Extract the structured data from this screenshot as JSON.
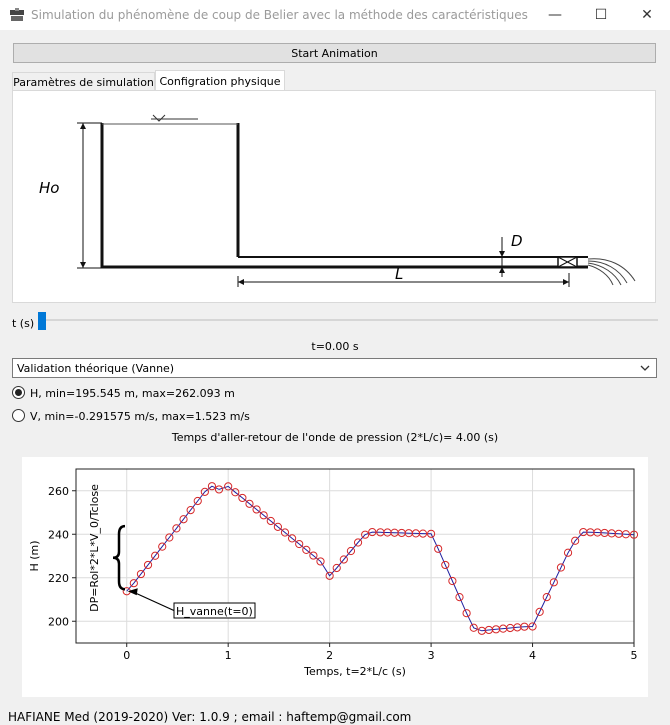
{
  "window": {
    "title": "Simulation du phénomène de coup de Belier avec la méthode des caractéristiques",
    "minimize_glyph": "—",
    "maximize_glyph": "☐",
    "close_glyph": "✕"
  },
  "toolbar": {
    "start_label": "Start Animation"
  },
  "tabs": [
    {
      "label": "Paramètres de simulation",
      "active": false
    },
    {
      "label": "Configration physique",
      "active": true
    }
  ],
  "diagram": {
    "h0_label": "Ho",
    "d_label": "D",
    "l_label": "L"
  },
  "time_slider": {
    "label": "t (s)",
    "value": 0,
    "value_text": "t=0.00 s"
  },
  "mode_select": {
    "selected": "Validation théorique (Vanne)"
  },
  "radios": [
    {
      "label": "H, min=195.545 m, max=262.093 m",
      "checked": true
    },
    {
      "label": "V, min=-0.291575 m/s, max=1.523 m/s",
      "checked": false
    }
  ],
  "roundtrip_text": "Temps d'aller-retour de l'onde de pression (2*L/c)= 4.00 (s)",
  "chart_data": {
    "type": "line",
    "xlabel": "Temps, t=2*L/c (s)",
    "ylabel": "H (m)",
    "xlim": [
      -0.5,
      5.0
    ],
    "ylim": [
      190,
      270
    ],
    "xticks": [
      0,
      1,
      2,
      3,
      4,
      5
    ],
    "yticks": [
      200,
      220,
      240,
      260
    ],
    "grid": true,
    "line_color": "#2020a0",
    "marker_color": "#d62728",
    "annotations": [
      {
        "text": "H_vanne(t=0)",
        "x": 0,
        "y": 213.8
      },
      {
        "text": "DP=Rol*2*L*V_0/Tclose",
        "x": -0.12,
        "y": 237
      }
    ],
    "series": [
      {
        "x": [
          0.0,
          0.07,
          0.14,
          0.21,
          0.28,
          0.35,
          0.42,
          0.49,
          0.56,
          0.63,
          0.7,
          0.77,
          0.84,
          0.91,
          1.0,
          1.07,
          1.14,
          1.21,
          1.28,
          1.35,
          1.42,
          1.49,
          1.56,
          1.63,
          1.7,
          1.77,
          1.84,
          1.91,
          2.0,
          2.07,
          2.14,
          2.21,
          2.28,
          2.35,
          2.42,
          2.5,
          2.57,
          2.64,
          2.71,
          2.78,
          2.85,
          2.92,
          3.0,
          3.07,
          3.14,
          3.21,
          3.28,
          3.35,
          3.42,
          3.5,
          3.57,
          3.64,
          3.71,
          3.78,
          3.85,
          3.92,
          4.0,
          4.07,
          4.14,
          4.21,
          4.28,
          4.35,
          4.42,
          4.5,
          4.57,
          4.64,
          4.71,
          4.78,
          4.85,
          4.92,
          5.0
        ],
        "y": [
          213.8,
          217.5,
          221.7,
          225.9,
          230.1,
          234.3,
          238.5,
          242.7,
          246.9,
          251.1,
          255.3,
          259.5,
          262.1,
          260.6,
          262.0,
          259.3,
          256.7,
          254.0,
          251.4,
          248.7,
          246.1,
          243.4,
          240.8,
          238.1,
          235.5,
          232.8,
          230.2,
          227.5,
          220.9,
          224.5,
          228.4,
          232.3,
          236.2,
          239.8,
          241.0,
          240.9,
          240.8,
          240.7,
          240.6,
          240.5,
          240.4,
          240.3,
          240.2,
          233.3,
          225.9,
          218.5,
          211.1,
          203.7,
          197.0,
          195.6,
          196.0,
          196.3,
          196.6,
          196.9,
          197.2,
          197.5,
          197.6,
          204.3,
          211.1,
          217.9,
          224.7,
          231.5,
          237.0,
          241.0,
          240.9,
          240.8,
          240.6,
          240.4,
          240.2,
          240.0,
          239.8
        ]
      }
    ]
  },
  "footer": "HAFIANE Med (2019-2020) Ver: 1.0.9 ; email : haftemp@gmail.com"
}
